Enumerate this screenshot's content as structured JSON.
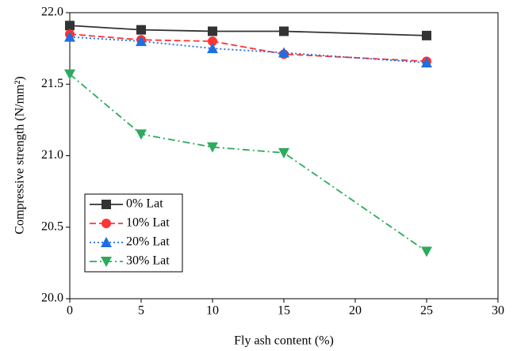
{
  "chart_data": {
    "type": "line",
    "xlabel": "Fly ash content (%)",
    "ylabel": "Compressive strength (N/mm²)",
    "x": [
      0,
      5,
      10,
      15,
      25
    ],
    "series": [
      {
        "name": "0% Lat",
        "color": "#333333",
        "marker": "square",
        "dash": "solid",
        "values": [
          21.91,
          21.88,
          21.87,
          21.87,
          21.84
        ]
      },
      {
        "name": "10% Lat",
        "color": "#ff3333",
        "marker": "circle",
        "dash": "dash",
        "values": [
          21.85,
          21.81,
          21.8,
          21.71,
          21.66
        ]
      },
      {
        "name": "20% Lat",
        "color": "#1f6fdf",
        "marker": "triangle-up",
        "dash": "dot",
        "values": [
          21.83,
          21.8,
          21.75,
          21.72,
          21.65
        ]
      },
      {
        "name": "30% Lat",
        "color": "#2eaa5e",
        "marker": "triangle-down",
        "dash": "dashdot",
        "values": [
          21.57,
          21.15,
          21.06,
          21.02,
          20.33
        ]
      }
    ],
    "xlim": [
      0,
      30
    ],
    "xticks": [
      0,
      5,
      10,
      15,
      20,
      25,
      30
    ],
    "ylim": [
      20.0,
      22.0
    ],
    "yticks": [
      {
        "value": 20.0,
        "label": "20.0"
      },
      {
        "value": 20.5,
        "label": "20.5"
      },
      {
        "value": 21.0,
        "label": "21.0"
      },
      {
        "value": 21.5,
        "label": "21.5"
      },
      {
        "value": 22.0,
        "label": "22.0"
      }
    ],
    "legend": "lower left"
  }
}
